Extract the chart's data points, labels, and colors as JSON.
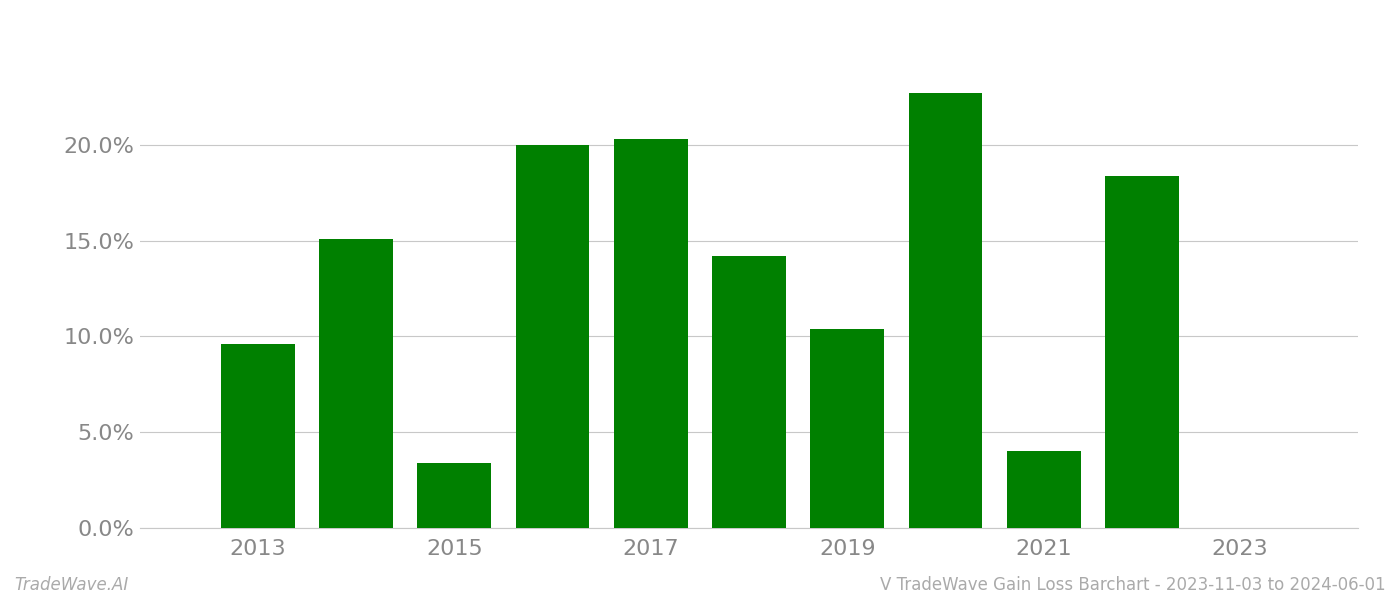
{
  "years": [
    2013,
    2014,
    2015,
    2016,
    2017,
    2018,
    2019,
    2020,
    2021,
    2022
  ],
  "values": [
    0.096,
    0.151,
    0.034,
    0.2,
    0.203,
    0.142,
    0.104,
    0.227,
    0.04,
    0.184
  ],
  "bar_color": "#008000",
  "background_color": "#ffffff",
  "grid_color": "#c8c8c8",
  "ylim": [
    0,
    0.26
  ],
  "yticks": [
    0.0,
    0.05,
    0.1,
    0.15,
    0.2
  ],
  "xtick_years": [
    2013,
    2015,
    2017,
    2019,
    2021,
    2023
  ],
  "xlim": [
    2011.8,
    2024.2
  ],
  "bar_width": 0.75,
  "tick_color": "#888888",
  "tick_fontsize": 16,
  "footer_left": "TradeWave.AI",
  "footer_right": "V TradeWave Gain Loss Barchart - 2023-11-03 to 2024-06-01",
  "footer_color": "#aaaaaa",
  "footer_fontsize": 12
}
